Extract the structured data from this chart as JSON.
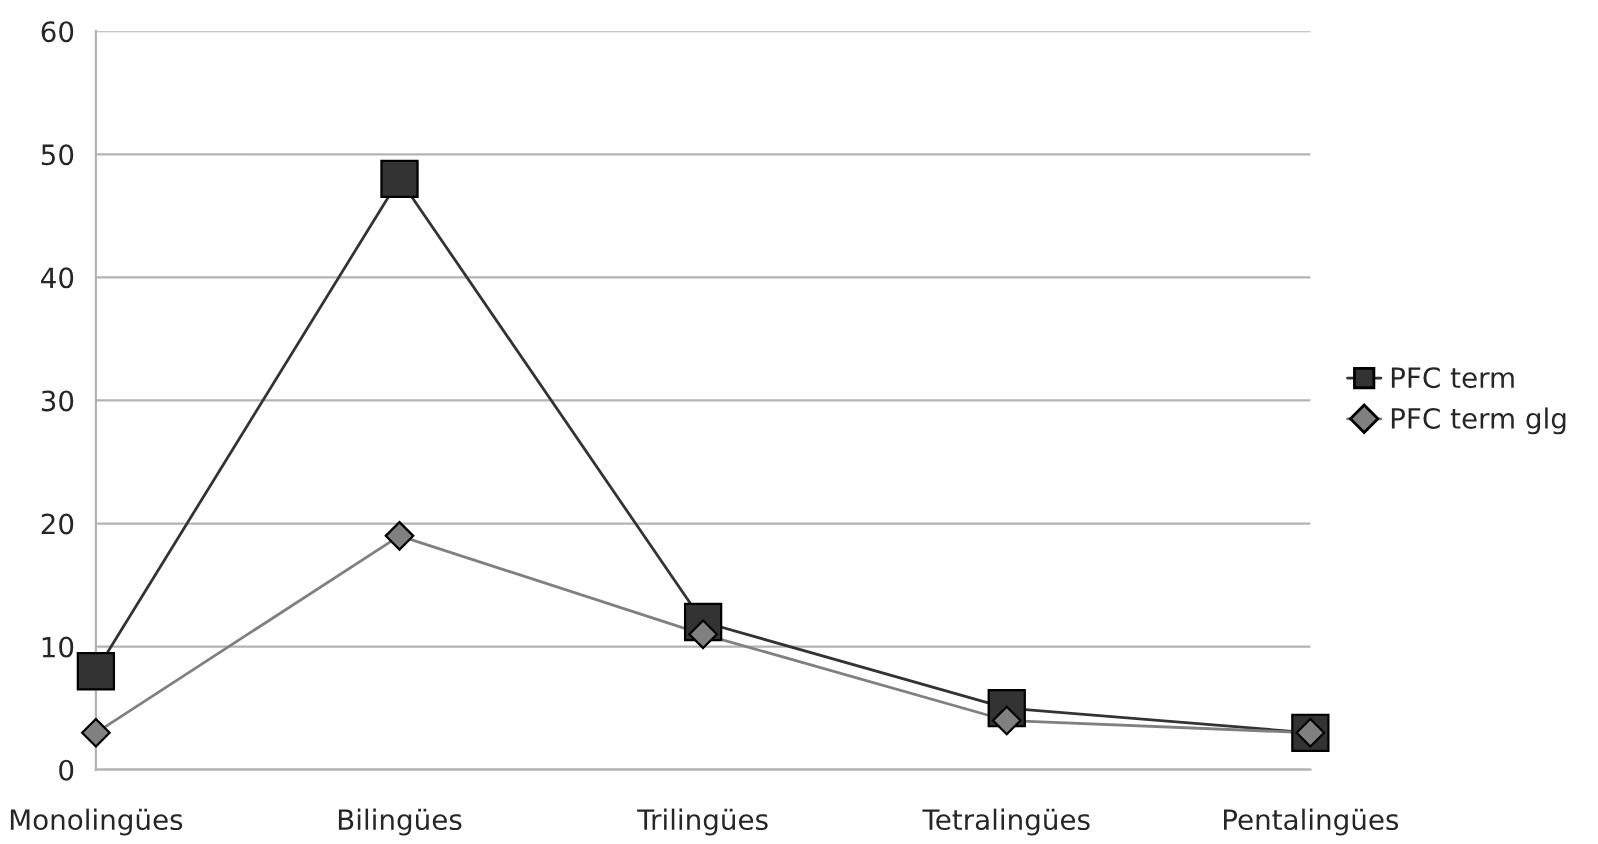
{
  "chart_data": {
    "type": "line",
    "categories": [
      "Monolingües",
      "Bilingües",
      "Trilingües",
      "Tetralingües",
      "Pentalingües"
    ],
    "series": [
      {
        "name": "PFC term",
        "color": "#333333",
        "marker": "square",
        "values": [
          8,
          48,
          12,
          5,
          3
        ]
      },
      {
        "name": "PFC term glg",
        "color": "#808080",
        "marker": "diamond",
        "values": [
          3,
          19,
          11,
          4,
          3
        ]
      }
    ],
    "ylim": [
      0,
      60
    ],
    "yticks": [
      0,
      10,
      20,
      30,
      40,
      50,
      60
    ],
    "grid": "y",
    "legend": "right",
    "line_style": "solid"
  }
}
